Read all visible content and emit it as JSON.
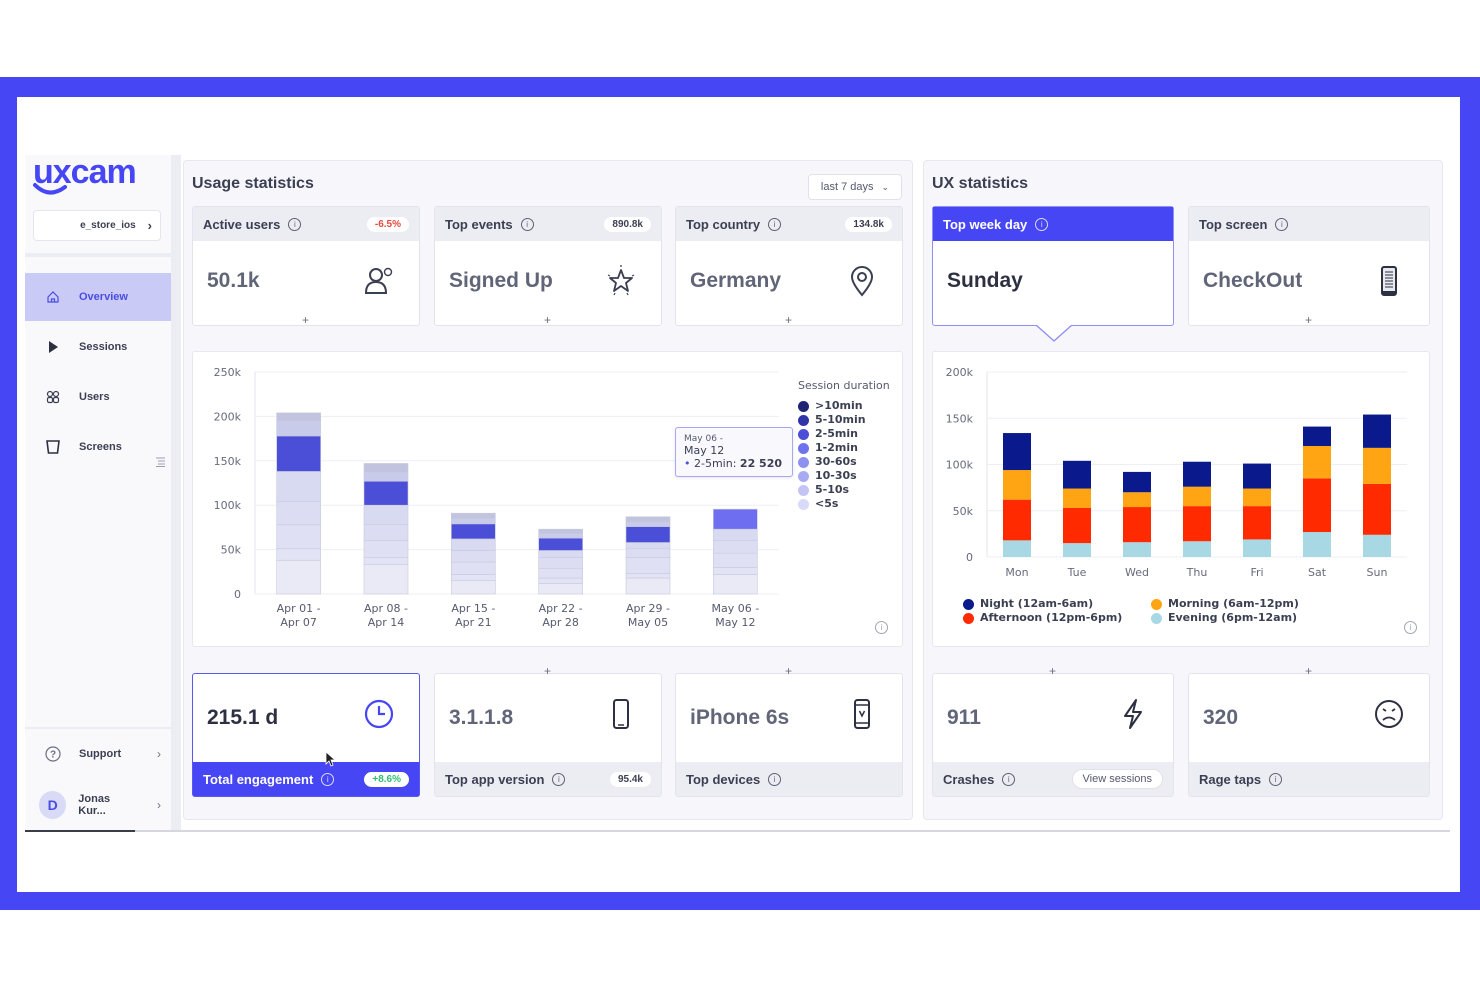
{
  "brand": {
    "name": "uxcam",
    "accent": "#4646f5"
  },
  "sidebar": {
    "app_select": "e_store_ios",
    "items": [
      {
        "label": "Overview",
        "icon": "home-icon",
        "active": true
      },
      {
        "label": "Sessions",
        "icon": "play-icon",
        "active": false
      },
      {
        "label": "Users",
        "icon": "users-icon",
        "active": false
      },
      {
        "label": "Screens",
        "icon": "screens-icon",
        "active": false
      }
    ],
    "support_label": "Support",
    "user": {
      "initial": "D",
      "name": "Jonas Kur..."
    }
  },
  "usage": {
    "title": "Usage statistics",
    "range": "last 7 days",
    "top_cards": [
      {
        "label": "Active users",
        "badge": "-6.5%",
        "value": "50.1k",
        "icon": "user-icon"
      },
      {
        "label": "Top events",
        "badge": "890.8k",
        "value": "Signed Up",
        "icon": "star-icon"
      },
      {
        "label": "Top country",
        "badge": "134.8k",
        "value": "Germany",
        "icon": "location-pin-icon"
      }
    ],
    "bottom_cards": [
      {
        "label": "Total engagement",
        "badge": "+8.6%",
        "value": "215.1 d",
        "icon": "clock-icon"
      },
      {
        "label": "Top app version",
        "badge": "95.4k",
        "value": "3.1.1.8",
        "icon": "phone-icon"
      },
      {
        "label": "Top devices",
        "value": "iPhone 6s",
        "icon": "device-icon"
      }
    ],
    "tooltip": {
      "range_line1": "May 06 -",
      "range_line2": "May 12",
      "series": "2-5min:",
      "value": "22 520"
    }
  },
  "ux": {
    "title": "UX statistics",
    "top_cards": [
      {
        "label": "Top week day",
        "value": "Sunday"
      },
      {
        "label": "Top screen",
        "value": "CheckOut",
        "icon": "screen-icon"
      }
    ],
    "bottom_cards": [
      {
        "label": "Crashes",
        "value": "911",
        "icon": "lightning-icon",
        "action": "View sessions"
      },
      {
        "label": "Rage taps",
        "value": "320",
        "icon": "angry-face-icon"
      }
    ]
  },
  "chart_data": [
    {
      "type": "bar",
      "stacked": true,
      "title": "Session duration by week",
      "legend_title": "Session duration",
      "categories": [
        "Apr 01 - Apr 07",
        "Apr 08 - Apr 14",
        "Apr 15 - Apr 21",
        "Apr 22 - Apr 28",
        "Apr 29 - May 05",
        "May 06 - May 12"
      ],
      "series": [
        {
          "name": "<5s",
          "color": "#e9eaf6",
          "values": [
            38000,
            33000,
            15000,
            12000,
            18000,
            22000
          ]
        },
        {
          "name": "5-10s",
          "color": "#e2e3f4",
          "values": [
            13000,
            8000,
            7000,
            6000,
            5000,
            8000
          ]
        },
        {
          "name": "10-30s",
          "color": "#dfe0f3",
          "values": [
            27000,
            19000,
            14000,
            11000,
            18000,
            16000
          ]
        },
        {
          "name": "30-60s",
          "color": "#dcddf2",
          "values": [
            26000,
            18000,
            13000,
            12000,
            10000,
            14000
          ]
        },
        {
          "name": "1-2min",
          "color": "#d8daf2",
          "values": [
            34000,
            22000,
            13000,
            8000,
            7000,
            13000
          ]
        },
        {
          "name": "2-5min",
          "color": "#4b4ed6",
          "values": [
            40000,
            27000,
            17000,
            14000,
            18000,
            22520
          ]
        },
        {
          "name": "5-10min",
          "color": "#c9cbeb",
          "values": [
            17000,
            10000,
            6000,
            5000,
            5000,
            0
          ]
        },
        {
          "name": ">10min",
          "color": "#c2c4df",
          "values": [
            9000,
            10000,
            6000,
            5000,
            6000,
            0
          ]
        }
      ],
      "legend_colors": [
        "#1e2373",
        "#2f35a8",
        "#4b4ed6",
        "#6f72ef",
        "#8f91f0",
        "#a9abf2",
        "#c3c4f5",
        "#d9dafa"
      ],
      "legend": [
        ">10min",
        "5-10min",
        "2-5min",
        "1-2min",
        "30-60s",
        "10-30s",
        "5-10s",
        "<5s"
      ],
      "yticks": [
        "0",
        "50k",
        "100k",
        "150k",
        "200k",
        "250k"
      ],
      "ylim": [
        0,
        250000
      ],
      "legend_position": "right"
    },
    {
      "type": "bar",
      "stacked": true,
      "title": "Sessions by weekday and time of day",
      "categories": [
        "Mon",
        "Tue",
        "Wed",
        "Thu",
        "Fri",
        "Sat",
        "Sun"
      ],
      "series": [
        {
          "name": "Evening (6pm-12am)",
          "color": "#a8d8e3",
          "values": [
            18000,
            15000,
            16000,
            17000,
            19000,
            27000,
            24000
          ]
        },
        {
          "name": "Afternoon (12pm-6pm)",
          "color": "#ff2a00",
          "values": [
            44000,
            38000,
            38000,
            38000,
            36000,
            58000,
            55000
          ]
        },
        {
          "name": "Morning (6am-12pm)",
          "color": "#ffa412",
          "values": [
            32000,
            21000,
            16000,
            21000,
            19000,
            35000,
            39000
          ]
        },
        {
          "name": "Night (12am-6am)",
          "color": "#0a1a8c",
          "values": [
            40000,
            30000,
            22000,
            27000,
            27000,
            21000,
            36000
          ]
        }
      ],
      "legend": [
        "Night (12am-6am)",
        "Morning (6am-12pm)",
        "Afternoon (12pm-6pm)",
        "Evening (6pm-12am)"
      ],
      "yticks": [
        "0",
        "50k",
        "100k",
        "150k",
        "200k"
      ],
      "ylim": [
        0,
        200000
      ],
      "legend_position": "bottom"
    }
  ]
}
